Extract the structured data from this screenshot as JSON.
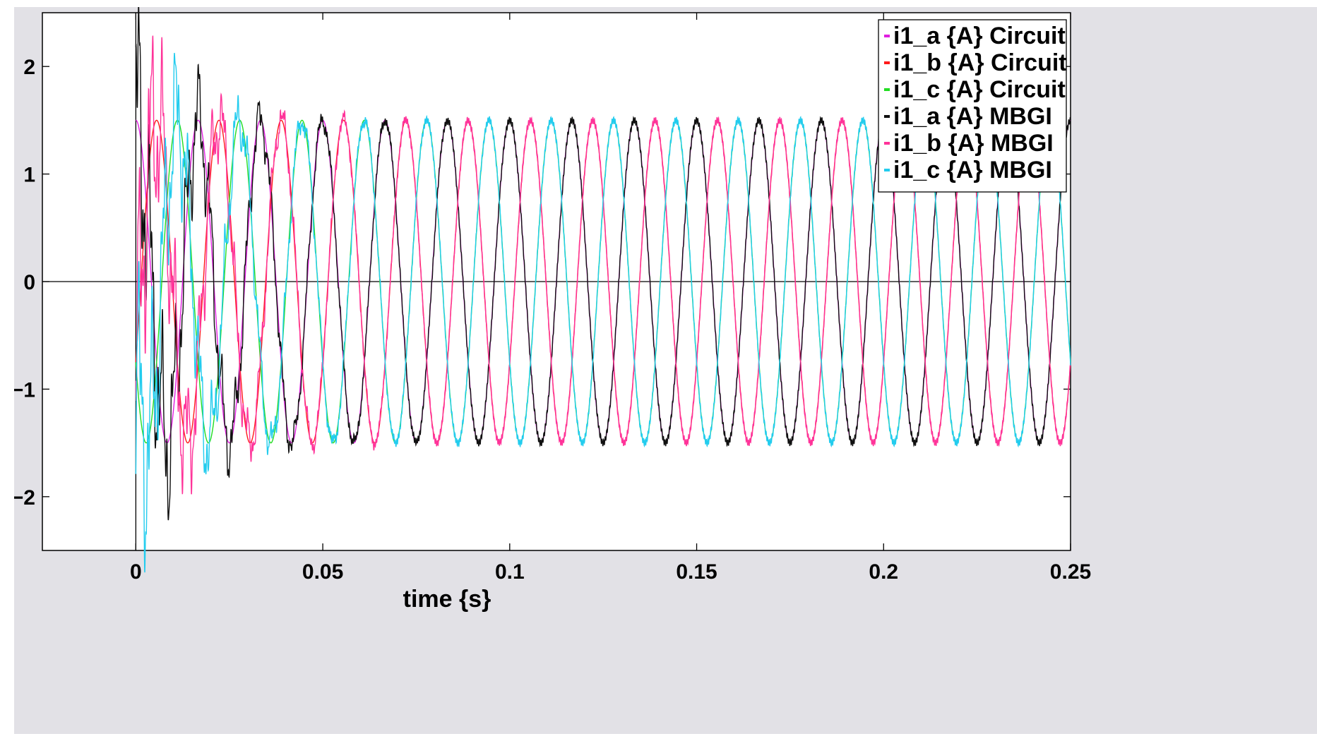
{
  "chart_data": {
    "type": "line",
    "title": "",
    "xlabel": "time {s}",
    "ylabel": "",
    "xlim": [
      -0.025,
      0.25
    ],
    "ylim": [
      -2.5,
      2.5
    ],
    "x_ticks": [
      0,
      0.05,
      0.1,
      0.15,
      0.2,
      0.25
    ],
    "x_tick_labels": [
      "0",
      "0.05",
      "0.1",
      "0.15",
      "0.2",
      "0.25"
    ],
    "y_ticks": [
      -2,
      -1,
      0,
      1,
      2
    ],
    "y_tick_labels": [
      "−2",
      "−1",
      "0",
      "1",
      "2"
    ],
    "grid": false,
    "legend_position": "top-right",
    "signal": {
      "amplitude_A": 1.5,
      "frequency_Hz": 60,
      "t_start_s": 0,
      "t_end_s": 0.25
    },
    "series": [
      {
        "name": "i1_a {A} Circuit",
        "color": "#e01ee0",
        "phase_deg": 90,
        "transient": "none"
      },
      {
        "name": "i1_b {A} Circuit",
        "color": "#ff1a1a",
        "phase_deg": -30,
        "transient": "none"
      },
      {
        "name": "i1_c {A} Circuit",
        "color": "#22dd22",
        "phase_deg": 210,
        "transient": "none"
      },
      {
        "name": "i1_a {A} MBGI",
        "color": "#101010",
        "phase_deg": 90,
        "transient": "strong"
      },
      {
        "name": "i1_b {A} MBGI",
        "color": "#ff3399",
        "phase_deg": -30,
        "transient": "strong"
      },
      {
        "name": "i1_c {A} MBGI",
        "color": "#22ccee",
        "phase_deg": 210,
        "transient": "strong"
      }
    ]
  }
}
